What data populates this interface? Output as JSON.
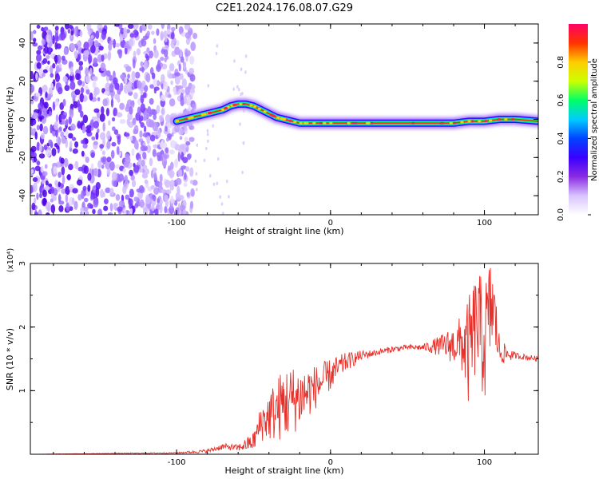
{
  "title": "C2E1.2024.176.08.07.G29",
  "chart_data": [
    {
      "type": "heatmap",
      "xlabel": "Height of straight line (km)",
      "ylabel": "Frequency (Hz)",
      "xlim": [
        -195,
        135
      ],
      "ylim": [
        -50,
        50
      ],
      "x_ticks": [
        -100,
        0,
        100
      ],
      "y_ticks": [
        -40,
        -20,
        0,
        20,
        40
      ],
      "colorbar": {
        "label": "Normalized spectral amplitude",
        "range": [
          0,
          1
        ],
        "ticks": [
          "0.0",
          "0.2",
          "0.4",
          "0.6",
          "0.8"
        ],
        "colormap": [
          "#ffffff",
          "#d8c4ff",
          "#8a2be2",
          "#3a00ff",
          "#0044ff",
          "#00ccff",
          "#00ff66",
          "#ccff00",
          "#ffcc00",
          "#ff3300",
          "#ff0066"
        ]
      },
      "ridge": {
        "x": [
          -100,
          -95,
          -90,
          -85,
          -80,
          -75,
          -70,
          -65,
          -60,
          -55,
          -50,
          -45,
          -40,
          -35,
          -30,
          -25,
          -20,
          -10,
          0,
          10,
          20,
          40,
          60,
          80,
          90,
          100,
          110,
          120,
          135
        ],
        "freq": [
          -1,
          0,
          1,
          2,
          3,
          4,
          5,
          7,
          8,
          8,
          7,
          5,
          3,
          1,
          0,
          -1,
          -2,
          -2,
          -2,
          -2,
          -2,
          -2,
          -2,
          -2,
          -1,
          -1,
          0,
          0,
          -1
        ]
      }
    },
    {
      "type": "line",
      "xlabel": "Height of straight line (km)",
      "ylabel": "SNR (10 * v/v)",
      "y_multiplier": "(x10⁴)",
      "xlim": [
        -195,
        135
      ],
      "ylim": [
        0,
        3
      ],
      "x_ticks": [
        -100,
        0,
        100
      ],
      "y_ticks": [
        1,
        2,
        3
      ],
      "color": "#e8302a",
      "series": [
        {
          "x": [
            -195,
            -150,
            -100,
            -80,
            -70,
            -60,
            -50,
            -45,
            -40,
            -30,
            -20,
            -10,
            0,
            10,
            20,
            30,
            40,
            50,
            60,
            70,
            80,
            85,
            90,
            95,
            100,
            105,
            110,
            120,
            135
          ],
          "y": [
            0.0,
            0.01,
            0.02,
            0.05,
            0.12,
            0.1,
            0.2,
            0.5,
            0.6,
            0.8,
            0.9,
            1.05,
            1.25,
            1.45,
            1.55,
            1.6,
            1.65,
            1.68,
            1.68,
            1.7,
            1.72,
            1.75,
            1.6,
            2.1,
            1.75,
            2.4,
            1.6,
            1.55,
            1.5
          ],
          "spread": [
            0.0,
            0.005,
            0.01,
            0.03,
            0.05,
            0.05,
            0.15,
            0.3,
            0.4,
            0.6,
            0.5,
            0.35,
            0.25,
            0.15,
            0.08,
            0.05,
            0.05,
            0.04,
            0.05,
            0.15,
            0.3,
            0.45,
            0.9,
            0.8,
            1.0,
            0.8,
            0.2,
            0.05,
            0.04
          ]
        }
      ]
    }
  ]
}
